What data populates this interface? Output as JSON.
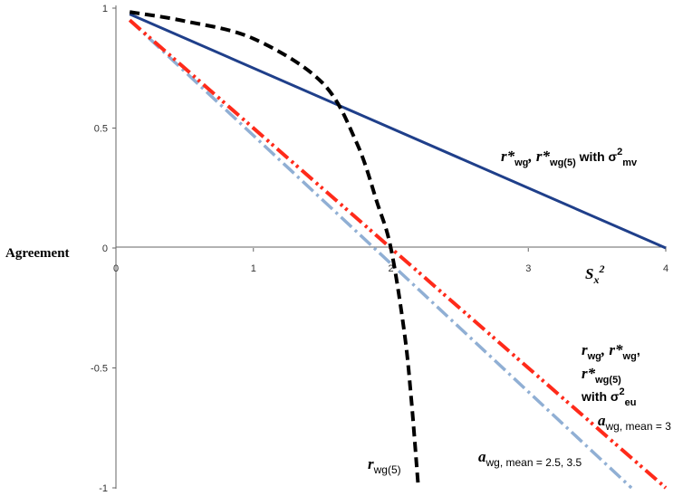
{
  "chart_data": {
    "type": "line",
    "ylabel": "Agreement",
    "xlabel": "S_x^2",
    "xlim": [
      0,
      4
    ],
    "ylim": [
      -1,
      1
    ],
    "xticks": [
      "0",
      "1",
      "2",
      "3",
      "4"
    ],
    "yticks": [
      "1",
      "0.5",
      "0",
      "-0.5",
      "-1"
    ],
    "series": [
      {
        "name": "r*wg, r*wg(5) with σ²mv",
        "color": "#1f3f8a",
        "style": "solid",
        "x": [
          0.1,
          4.0
        ],
        "y": [
          0.975,
          0.0
        ]
      },
      {
        "name": "rwg, r*wg, r*wg(5) with σ²eu (awg, mean = 3)",
        "color": "#ff2a1a",
        "style": "dash-dot-dot",
        "x": [
          0.1,
          4.0
        ],
        "y": [
          0.95,
          -1.0
        ]
      },
      {
        "name": "awg, mean = 2.5, 3.5",
        "color": "#90afd4",
        "style": "dash-dot",
        "x": [
          0.1,
          3.75
        ],
        "y": [
          0.95,
          -1.0
        ]
      },
      {
        "name": "rwg(5)",
        "color": "#000000",
        "style": "dashed",
        "x": [
          0.1,
          0.5,
          1.0,
          1.5,
          1.75,
          1.9,
          2.0,
          2.1,
          2.15,
          2.2
        ],
        "y": [
          0.984,
          0.946,
          0.873,
          0.69,
          0.44,
          0.19,
          0.0,
          -0.36,
          -0.64,
          -1.0
        ]
      }
    ],
    "annotations": {
      "mv_label": {
        "main": "r*",
        "sub1": "wg",
        "mid": ", r*",
        "sub2": "wg(5)",
        "tail": " with σ",
        "sup": "2",
        "sub3": "mv"
      },
      "eu_label": {
        "line1_a": "r",
        "line1_sub": "wg",
        "line1_b": ", r*",
        "line1_sub2": "wg",
        "line1_c": ",",
        "line2_a": "r*",
        "line2_sub": "wg(5)",
        "line3_a": "with σ",
        "line3_sup": "2",
        "line3_sub": "eu"
      },
      "awg3": {
        "main": "a",
        "sub": "wg, mean = 3"
      },
      "awg25": {
        "main": "a",
        "sub": "wg, mean = 2.5, 3.5"
      },
      "rwg5": {
        "main": "r",
        "sub": "wg(5)"
      }
    }
  }
}
